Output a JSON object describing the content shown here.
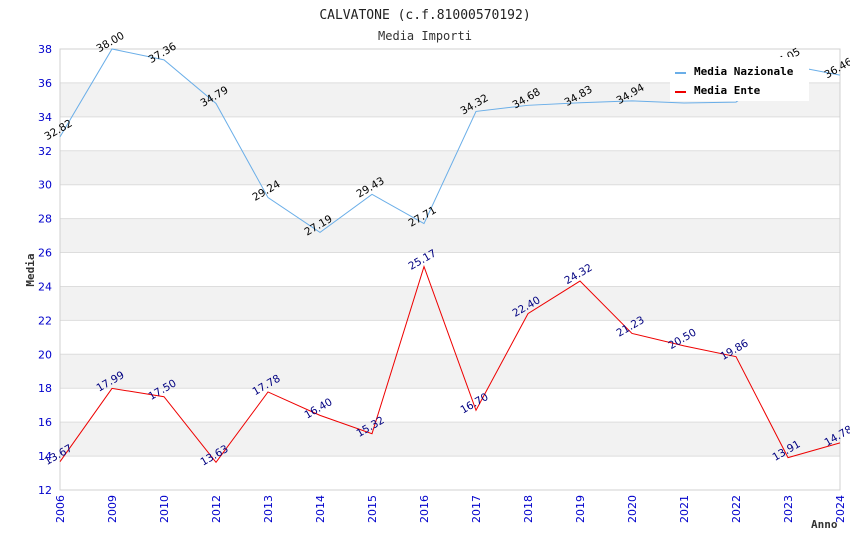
{
  "chart_data": {
    "type": "line",
    "title": "CALVATONE (c.f.81000570192)",
    "subtitle": "Media Importi",
    "xlabel": "Anno",
    "ylabel": "Media",
    "categories": [
      "2006",
      "2009",
      "2010",
      "2012",
      "2013",
      "2014",
      "2015",
      "2016",
      "2017",
      "2018",
      "2019",
      "2020",
      "2021",
      "2022",
      "2023",
      "2024"
    ],
    "ylim": [
      12,
      38
    ],
    "yticks": [
      12,
      14,
      16,
      18,
      20,
      22,
      24,
      26,
      28,
      30,
      32,
      34,
      36,
      38
    ],
    "grid": true,
    "legend_position": "top-right",
    "series": [
      {
        "name": "Media Nazionale",
        "color": "#6aaee8",
        "label_color": "#000000",
        "values": [
          32.82,
          38.0,
          37.36,
          34.79,
          29.24,
          27.19,
          29.43,
          27.71,
          34.32,
          34.68,
          34.83,
          34.94,
          34.82,
          34.87,
          37.05,
          36.46
        ],
        "labels": [
          "32.82",
          "38.00",
          "37.36",
          "34.79",
          "29.24",
          "27.19",
          "29.43",
          "27.71",
          "34.32",
          "34.68",
          "34.83",
          "34.94",
          "",
          "",
          "37.05",
          "36.46"
        ]
      },
      {
        "name": "Media Ente",
        "color": "#ee0000",
        "label_color": "#000080",
        "values": [
          13.67,
          17.99,
          17.5,
          13.63,
          17.78,
          16.4,
          15.32,
          25.17,
          16.7,
          22.4,
          24.32,
          21.23,
          20.5,
          19.86,
          13.91,
          14.78
        ],
        "labels": [
          "13.67",
          "17.99",
          "17.50",
          "13.63",
          "17.78",
          "16.40",
          "15.32",
          "25.17",
          "16.70",
          "22.40",
          "24.32",
          "21.23",
          "20.50",
          "19.86",
          "13.91",
          "14.78"
        ]
      }
    ]
  },
  "colors": {
    "tick_label": "#0000cc",
    "band": "#f2f2f2",
    "gridline": "#dddddd",
    "axis_title": "#333333"
  }
}
